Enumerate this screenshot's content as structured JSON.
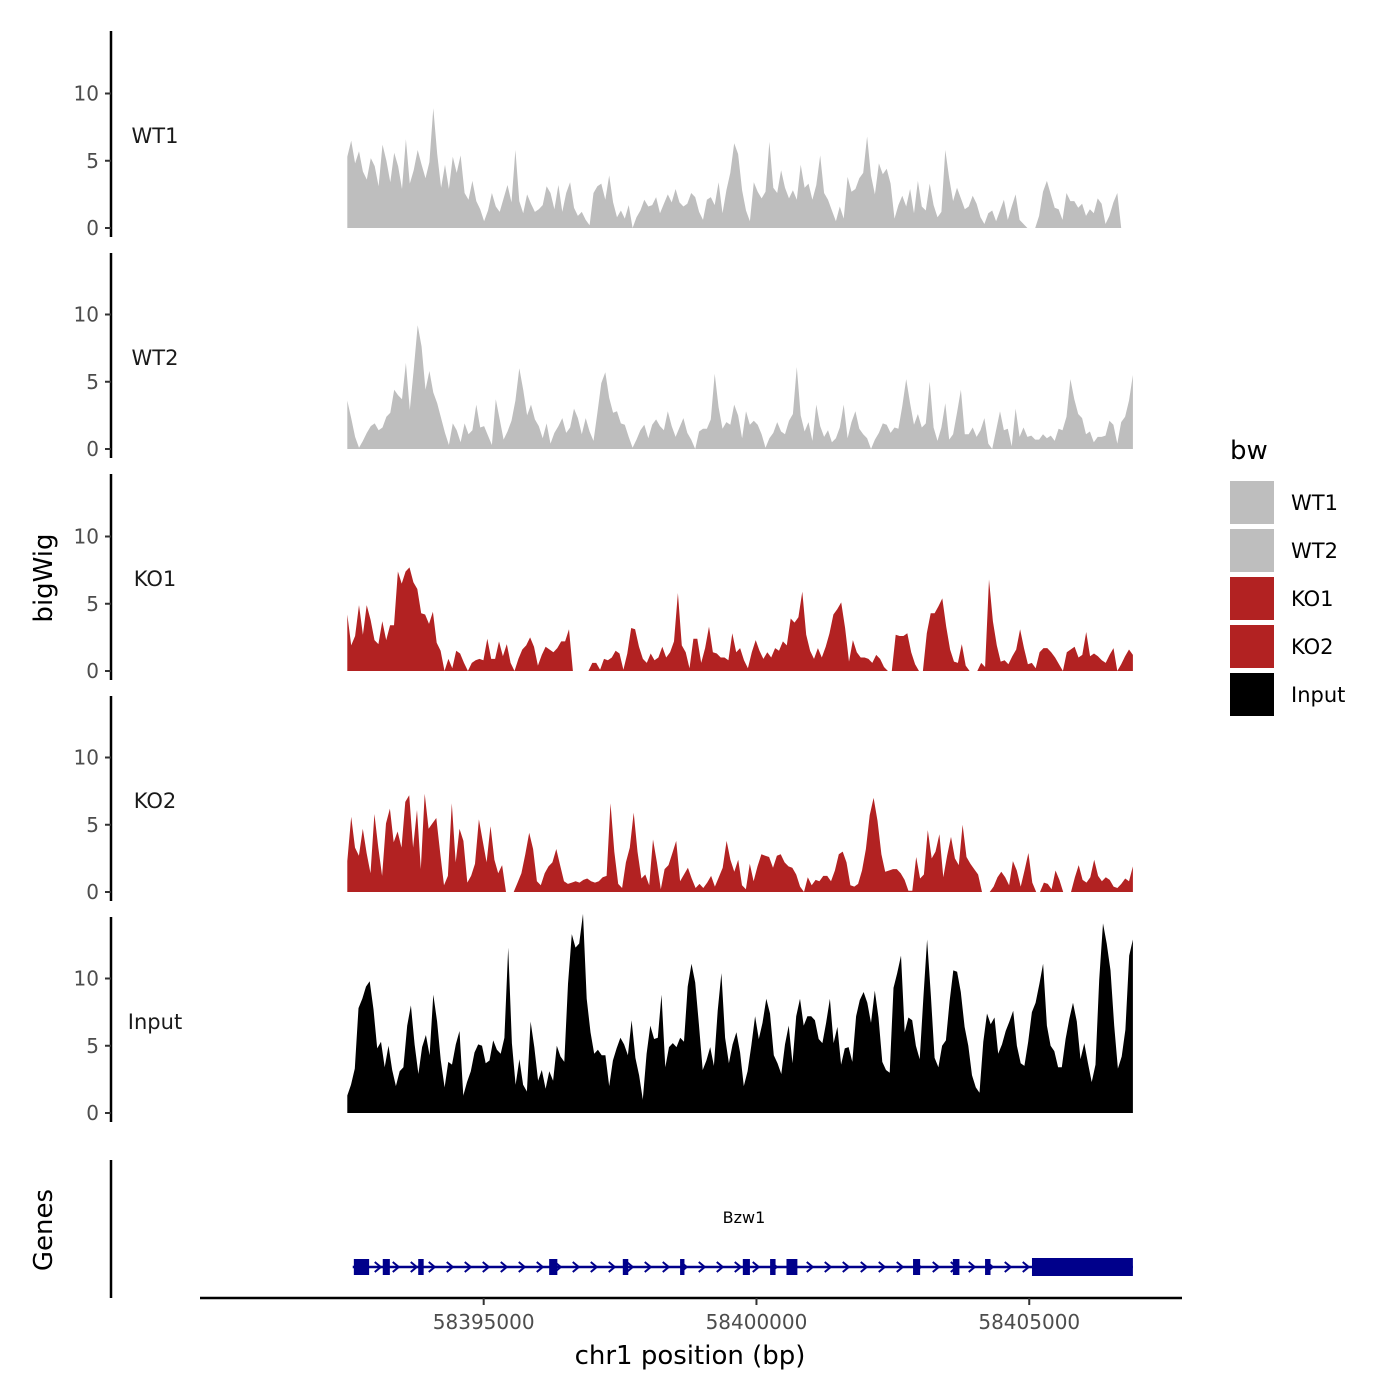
{
  "chart_data": {
    "type": "area",
    "ylabel": "bigWig",
    "xlabel": "chr1 position (bp)",
    "genes_label": "Genes",
    "xlim": [
      58389800,
      58407800
    ],
    "data_range": [
      58392500,
      58406900
    ],
    "x_ticks": [
      58395000,
      58400000,
      58405000
    ],
    "x_tick_labels": [
      "58395000",
      "58400000",
      "58405000"
    ],
    "ylim": [
      0,
      14.5
    ],
    "y_ticks": [
      0,
      5,
      10
    ],
    "y_tick_labels": [
      "0",
      "5",
      "10"
    ],
    "legend": {
      "title": "bw",
      "position": "right",
      "items": [
        {
          "label": "WT1",
          "color": "#bebebe"
        },
        {
          "label": "WT2",
          "color": "#bebebe"
        },
        {
          "label": "KO1",
          "color": "#b22222"
        },
        {
          "label": "KO2",
          "color": "#b22222"
        },
        {
          "label": "Input",
          "color": "#000000"
        }
      ]
    },
    "tracks": [
      {
        "name": "WT1",
        "color": "#bebebe",
        "values": [
          5.3,
          6.5,
          4.8,
          5.7,
          4.2,
          3.6,
          5.2,
          4.6,
          3.1,
          6.2,
          5.0,
          3.4,
          5.6,
          4.6,
          2.9,
          6.6,
          3.3,
          4.3,
          5.8,
          4.7,
          3.7,
          4.9,
          8.9,
          5.5,
          3.0,
          4.7,
          2.9,
          5.3,
          4.1,
          5.4,
          2.6,
          2.1,
          3.5,
          2.0,
          1.4,
          0.5,
          1.3,
          2.6,
          1.6,
          1.2,
          2.2,
          3.2,
          1.9,
          5.8,
          2.0,
          1.1,
          2.5,
          1.8,
          1.2,
          1.4,
          1.7,
          3.1,
          2.6,
          1.4,
          3.2,
          1.2,
          2.6,
          3.4,
          1.5,
          0.9,
          1.2,
          0.6,
          0.2,
          2.6,
          3.1,
          3.3,
          2.1,
          3.9,
          1.9,
          0.8,
          1.3,
          0.7,
          1.7,
          0.0,
          0.8,
          1.3,
          2.1,
          1.6,
          1.7,
          2.3,
          1.1,
          1.8,
          2.5,
          1.9,
          2.9,
          1.9,
          1.6,
          1.8,
          2.6,
          2.3,
          1.2,
          0.6,
          2.1,
          2.3,
          1.7,
          3.4,
          1.1,
          2.8,
          4.1,
          6.3,
          5.5,
          2.8,
          1.3,
          0.5,
          3.4,
          2.7,
          2.2,
          2.7,
          6.4,
          3.0,
          2.6,
          4.3,
          3.0,
          2.2,
          2.8,
          2.1,
          4.7,
          3.0,
          3.3,
          2.1,
          3.2,
          5.4,
          2.6,
          2.1,
          1.3,
          0.5,
          1.6,
          0.7,
          3.8,
          2.7,
          2.9,
          3.7,
          4.1,
          6.8,
          3.9,
          2.5,
          4.8,
          4.0,
          4.4,
          3.3,
          0.7,
          1.7,
          2.4,
          1.6,
          2.9,
          1.1,
          3.5,
          1.6,
          1.3,
          3.3,
          1.7,
          0.8,
          1.2,
          5.8,
          3.7,
          2.0,
          3.0,
          2.2,
          1.4,
          1.6,
          2.4,
          1.8,
          0.8,
          0.3,
          1.1,
          1.3,
          0.5,
          1.3,
          2.1,
          0.6,
          1.6,
          2.5,
          0.6,
          0.3,
          0.0,
          0.0,
          0.0,
          0.9,
          2.7,
          3.5,
          2.5,
          1.5,
          1.4,
          0.6,
          2.6,
          2.0,
          2.0,
          1.5,
          1.8,
          0.9,
          1.4,
          1.1,
          2.2,
          1.8,
          0.3,
          0.9,
          1.9,
          2.6,
          0.0,
          0.0,
          0.0,
          0.0
        ]
      },
      {
        "name": "WT2",
        "color": "#bebebe",
        "values": [
          3.6,
          2.3,
          0.9,
          0.1,
          0.6,
          1.2,
          1.7,
          1.9,
          1.4,
          1.6,
          2.4,
          2.7,
          4.4,
          4.0,
          3.7,
          6.4,
          2.9,
          5.9,
          9.2,
          7.6,
          4.4,
          5.8,
          4.2,
          3.4,
          2.3,
          1.2,
          0.3,
          1.9,
          1.4,
          0.5,
          1.9,
          1.1,
          1.4,
          3.3,
          1.6,
          1.7,
          1.0,
          0.3,
          3.7,
          2.2,
          0.7,
          1.3,
          2.1,
          3.6,
          6.0,
          4.4,
          2.5,
          3.3,
          2.2,
          1.7,
          0.8,
          1.9,
          0.4,
          1.2,
          1.7,
          2.3,
          1.2,
          1.6,
          3.0,
          2.3,
          1.1,
          2.3,
          1.3,
          0.6,
          2.7,
          4.9,
          5.7,
          3.8,
          2.7,
          2.8,
          1.9,
          1.8,
          0.9,
          0.1,
          0.7,
          1.4,
          1.8,
          0.8,
          1.8,
          2.2,
          1.7,
          1.4,
          2.8,
          1.7,
          0.9,
          1.6,
          2.3,
          1.2,
          0.7,
          0.0,
          1.3,
          1.5,
          1.5,
          2.2,
          5.6,
          3.1,
          1.5,
          2.0,
          1.8,
          3.3,
          2.5,
          0.8,
          2.8,
          1.8,
          2.1,
          1.8,
          1.1,
          0.1,
          0.8,
          1.2,
          2.0,
          1.3,
          1.1,
          2.1,
          2.6,
          6.1,
          2.5,
          1.3,
          2.0,
          0.6,
          3.3,
          1.7,
          0.9,
          1.4,
          0.5,
          0.8,
          1.6,
          3.3,
          0.8,
          2.0,
          2.8,
          1.5,
          1.1,
          0.8,
          0.0,
          0.7,
          1.2,
          1.9,
          1.8,
          1.2,
          1.6,
          1.5,
          3.2,
          5.2,
          3.4,
          1.8,
          2.6,
          1.6,
          1.9,
          5.0,
          1.6,
          0.6,
          1.6,
          3.4,
          0.7,
          1.1,
          2.7,
          4.4,
          1.1,
          1.1,
          1.6,
          0.9,
          1.4,
          2.3,
          0.4,
          0.0,
          1.4,
          2.8,
          1.4,
          1.5,
          0.2,
          3.0,
          0.9,
          1.6,
          0.9,
          1.0,
          0.7,
          0.7,
          1.1,
          0.8,
          1.0,
          0.6,
          1.5,
          1.4,
          2.4,
          5.2,
          3.7,
          2.6,
          2.3,
          1.1,
          1.3,
          0.5,
          0.9,
          0.9,
          1.0,
          2.1,
          1.8,
          0.4,
          2.0,
          2.4,
          3.6,
          5.5
        ]
      },
      {
        "name": "KO1",
        "color": "#b22222",
        "values": [
          4.2,
          1.9,
          2.6,
          4.9,
          2.7,
          4.9,
          3.8,
          2.3,
          2.0,
          3.7,
          2.3,
          3.4,
          3.4,
          7.4,
          6.5,
          7.4,
          7.7,
          6.6,
          6.1,
          4.3,
          4.2,
          3.5,
          4.4,
          2.1,
          1.5,
          0.0,
          0.9,
          0.2,
          1.5,
          1.3,
          0.6,
          0.0,
          0.6,
          0.8,
          0.9,
          0.8,
          2.4,
          0.9,
          0.9,
          2.2,
          1.1,
          2.0,
          0.6,
          0.0,
          0.9,
          1.6,
          1.9,
          2.5,
          1.8,
          0.4,
          1.2,
          1.8,
          1.6,
          1.4,
          1.7,
          2.2,
          2.2,
          3.1,
          0.0,
          0.0,
          0.0,
          0.0,
          0.0,
          0.6,
          0.6,
          0.1,
          0.9,
          0.8,
          1.0,
          1.5,
          1.3,
          0.1,
          1.3,
          3.2,
          3.1,
          1.8,
          0.9,
          0.6,
          1.3,
          0.8,
          1.0,
          1.8,
          1.0,
          1.4,
          2.2,
          5.8,
          1.9,
          1.4,
          0.2,
          2.4,
          2.4,
          0.6,
          1.7,
          3.3,
          1.4,
          1.3,
          1.0,
          1.0,
          0.8,
          2.8,
          1.4,
          1.7,
          0.8,
          0.2,
          1.4,
          2.3,
          1.5,
          0.9,
          1.4,
          1.0,
          1.7,
          1.5,
          2.2,
          1.9,
          3.9,
          3.6,
          4.0,
          5.9,
          2.7,
          1.5,
          0.9,
          1.7,
          1.0,
          1.8,
          2.8,
          4.2,
          4.6,
          5.1,
          3.2,
          0.7,
          2.3,
          1.4,
          1.0,
          1.0,
          0.9,
          0.6,
          1.2,
          0.9,
          0.3,
          0.0,
          0.0,
          2.7,
          2.6,
          2.6,
          2.8,
          1.4,
          0.5,
          0.0,
          0.0,
          2.8,
          4.3,
          4.3,
          4.8,
          5.4,
          3.3,
          1.6,
          0.7,
          0.6,
          2.0,
          0.4,
          0.0,
          0.0,
          0.0,
          0.6,
          0.3,
          6.8,
          3.7,
          1.9,
          0.7,
          0.8,
          0.5,
          1.1,
          1.6,
          3.1,
          1.7,
          0.5,
          0.6,
          0.2,
          1.4,
          1.7,
          1.7,
          1.4,
          1.0,
          0.5,
          0.0,
          1.4,
          1.6,
          1.8,
          1.0,
          1.2,
          2.9,
          1.1,
          1.3,
          1.1,
          0.8,
          0.6,
          1.2,
          1.7,
          0.0,
          0.5,
          1.1,
          1.6,
          1.2
        ]
      },
      {
        "name": "KO2",
        "color": "#b22222",
        "values": [
          2.3,
          5.6,
          3.3,
          2.7,
          4.7,
          2.9,
          1.4,
          5.8,
          3.3,
          1.2,
          5.1,
          6.2,
          3.7,
          4.5,
          3.3,
          6.7,
          7.2,
          3.3,
          6.1,
          1.7,
          7.3,
          4.7,
          5.1,
          5.5,
          2.9,
          0.5,
          1.2,
          6.6,
          2.2,
          4.7,
          3.8,
          0.7,
          1.2,
          2.1,
          5.4,
          3.8,
          2.2,
          4.9,
          2.4,
          1.4,
          2.0,
          0.0,
          0.0,
          0.0,
          0.7,
          1.4,
          2.8,
          4.4,
          3.2,
          0.8,
          0.5,
          1.4,
          1.9,
          2.2,
          3.2,
          2.0,
          0.8,
          0.6,
          0.7,
          0.8,
          0.7,
          0.9,
          1.0,
          0.8,
          0.7,
          0.8,
          1.1,
          1.2,
          6.6,
          3.0,
          0.6,
          0.3,
          2.2,
          3.3,
          5.9,
          3.0,
          1.0,
          1.3,
          0.5,
          3.9,
          2.2,
          0.2,
          1.7,
          2.0,
          2.9,
          3.8,
          0.8,
          1.3,
          1.8,
          1.0,
          0.3,
          0.6,
          0.3,
          0.7,
          1.2,
          0.4,
          1.1,
          1.8,
          3.8,
          2.4,
          1.5,
          2.4,
          0.5,
          0.2,
          2.1,
          0.8,
          1.9,
          2.8,
          2.7,
          2.6,
          1.8,
          2.7,
          2.8,
          2.2,
          1.9,
          1.8,
          1.3,
          0.4,
          0.0,
          1.1,
          0.5,
          0.9,
          0.8,
          1.2,
          1.2,
          0.8,
          1.6,
          2.8,
          3.0,
          2.2,
          0.5,
          0.4,
          0.6,
          1.6,
          3.2,
          5.7,
          7.0,
          5.3,
          2.8,
          1.5,
          1.6,
          1.7,
          1.7,
          1.4,
          0.9,
          0.1,
          0.1,
          2.6,
          1.0,
          1.3,
          4.6,
          2.5,
          3.0,
          4.3,
          1.1,
          2.7,
          4.1,
          2.5,
          2.0,
          5.0,
          2.6,
          2.1,
          1.7,
          1.3,
          0.0,
          0.0,
          0.0,
          0.4,
          1.1,
          1.5,
          1.1,
          0.5,
          2.3,
          1.6,
          0.4,
          1.6,
          2.9,
          0.7,
          0.0,
          0.0,
          0.7,
          0.6,
          0.2,
          1.6,
          0.9,
          0.0,
          0.0,
          0.0,
          1.1,
          2.0,
          0.9,
          0.7,
          1.1,
          2.4,
          1.2,
          0.8,
          1.1,
          0.9,
          0.4,
          0.3,
          0.6,
          1.0,
          0.8,
          1.9
        ]
      },
      {
        "name": "Input",
        "color": "#000000",
        "values": [
          1.3,
          2.1,
          3.3,
          7.8,
          8.5,
          9.4,
          9.8,
          7.7,
          4.8,
          5.3,
          3.4,
          5.0,
          3.2,
          2.0,
          3.1,
          3.4,
          6.5,
          8.0,
          5.1,
          2.9,
          4.9,
          5.8,
          4.3,
          8.8,
          6.8,
          3.9,
          1.9,
          3.8,
          3.6,
          5.1,
          6.1,
          1.3,
          2.3,
          3.1,
          4.5,
          5.1,
          5.0,
          3.7,
          3.9,
          5.4,
          4.7,
          4.4,
          5.6,
          12.3,
          5.2,
          2.1,
          4.0,
          2.1,
          1.6,
          6.8,
          4.9,
          2.4,
          3.2,
          1.8,
          3.1,
          2.4,
          5.0,
          4.2,
          3.8,
          9.6,
          13.3,
          12.3,
          12.6,
          14.8,
          8.5,
          6.0,
          4.4,
          4.7,
          4.3,
          4.3,
          2.0,
          3.9,
          4.8,
          5.6,
          5.1,
          4.3,
          6.9,
          4.1,
          2.8,
          1.0,
          4.4,
          6.5,
          5.5,
          5.6,
          8.8,
          3.4,
          4.9,
          5.2,
          4.9,
          5.6,
          5.3,
          9.4,
          11.1,
          9.7,
          6.6,
          3.2,
          3.9,
          4.9,
          3.5,
          7.6,
          10.4,
          5.6,
          3.7,
          5.1,
          6.0,
          4.5,
          2.0,
          3.1,
          5.0,
          7.2,
          5.5,
          6.7,
          8.5,
          7.4,
          4.3,
          3.7,
          2.9,
          5.1,
          6.5,
          3.7,
          7.2,
          8.5,
          6.5,
          7.2,
          7.2,
          6.9,
          5.5,
          5.2,
          6.7,
          8.5,
          5.2,
          6.4,
          3.6,
          4.8,
          4.9,
          3.8,
          7.2,
          8.4,
          9.0,
          8.2,
          6.7,
          9.1,
          7.1,
          3.8,
          3.2,
          3.0,
          9.3,
          10.4,
          11.7,
          6.0,
          7.1,
          6.9,
          5.0,
          4.0,
          8.6,
          12.9,
          8.7,
          4.1,
          3.4,
          5.0,
          5.4,
          8.3,
          10.6,
          10.5,
          9.0,
          6.4,
          5.0,
          2.8,
          1.9,
          1.5,
          5.3,
          7.4,
          6.6,
          7.1,
          4.4,
          5.1,
          6.1,
          6.8,
          7.6,
          5.0,
          3.7,
          3.5,
          5.3,
          7.5,
          8.2,
          9.6,
          11.1,
          6.5,
          5.0,
          4.6,
          3.4,
          3.4,
          5.5,
          7.0,
          8.2,
          6.8,
          4.0,
          5.2,
          3.7,
          2.3,
          3.6,
          9.9,
          14.1,
          12.6,
          10.6,
          6.5,
          3.3,
          4.2,
          6.2,
          11.7,
          12.9
        ]
      }
    ],
    "gene": {
      "name": "Bzw1",
      "color": "#00008b",
      "tx_start": 58392600,
      "tx_end": 58406900,
      "strand": "+",
      "exons": [
        [
          58392620,
          58392900
        ],
        [
          58393150,
          58393280
        ],
        [
          58393800,
          58393900
        ],
        [
          58396200,
          58396350
        ],
        [
          58397550,
          58397650
        ],
        [
          58398600,
          58398680
        ],
        [
          58399750,
          58399880
        ],
        [
          58400250,
          58400350
        ],
        [
          58400550,
          58400750
        ],
        [
          58402870,
          58403000
        ],
        [
          58403600,
          58403720
        ],
        [
          58404190,
          58404290
        ],
        [
          58405050,
          58406900
        ]
      ]
    }
  }
}
